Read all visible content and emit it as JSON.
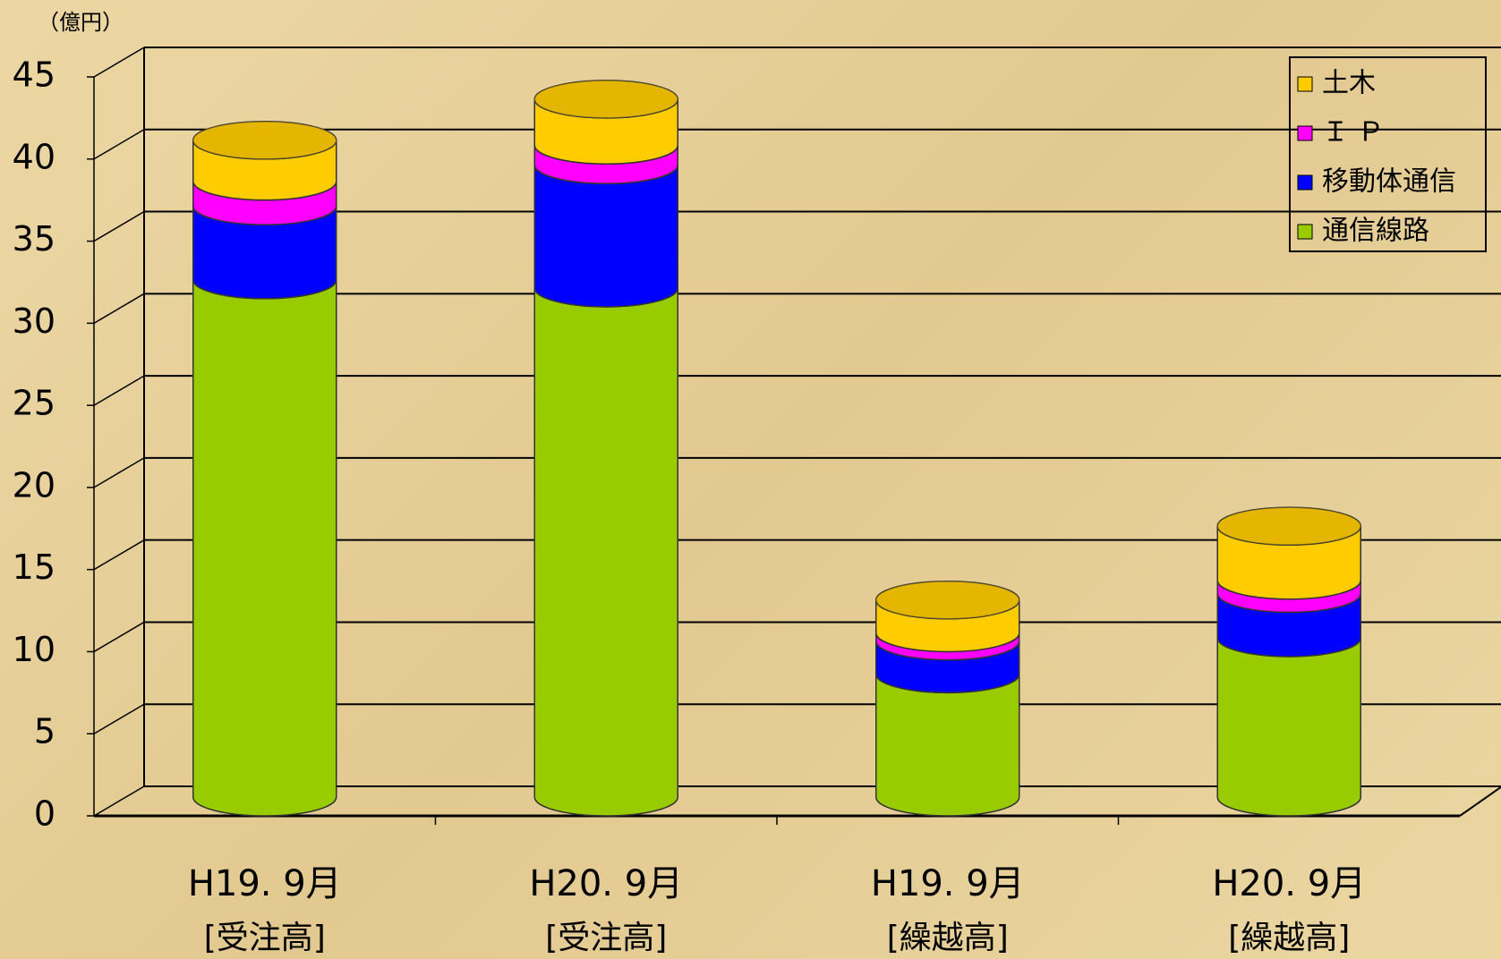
{
  "chart_data": {
    "type": "bar3d_cylinder_stacked",
    "y_label": "（億円）",
    "categories": [
      [
        "H19. 9月",
        "[受注高]"
      ],
      [
        "H20. 9月",
        "[受注高]"
      ],
      [
        "H19. 9月",
        "[繰越高]"
      ],
      [
        "H20. 9月",
        "[繰越高]"
      ]
    ],
    "series": [
      {
        "name": "通信線路",
        "color": "#99cc00",
        "top_color": "#7a9e00",
        "values": [
          31.5,
          31,
          7.5,
          9.7
        ]
      },
      {
        "name": "移動体通信",
        "color": "#0000ff",
        "top_color": "#0000aa",
        "values": [
          4.5,
          7.5,
          2,
          2.7
        ]
      },
      {
        "name": "Ｉ Ｐ",
        "color": "#ff00ff",
        "top_color": "#b000b0",
        "values": [
          1.5,
          1.2,
          0.5,
          0.8
        ]
      },
      {
        "name": "土木",
        "color": "#ffcc00",
        "top_color": "#c9a000",
        "values": [
          2.5,
          2.8,
          2,
          3.3
        ]
      }
    ],
    "ylim": [
      0,
      45
    ],
    "yticks": [
      0,
      5,
      10,
      15,
      20,
      25,
      30,
      35,
      40,
      45
    ],
    "grid": true,
    "legend": "top-right"
  }
}
